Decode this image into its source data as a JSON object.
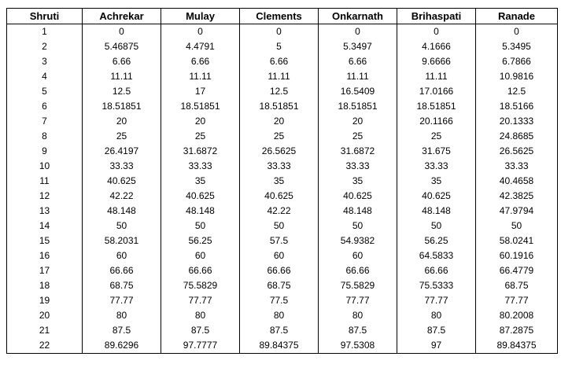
{
  "table": {
    "headers": [
      "Shruti",
      "Achrekar",
      "Mulay",
      "Clements",
      "Onkarnath",
      "Brihaspati",
      "Ranade"
    ],
    "rows": [
      [
        "1",
        "0",
        "0",
        "0",
        "0",
        "0",
        "0"
      ],
      [
        "2",
        "5.46875",
        "4.4791",
        "5",
        "5.3497",
        "4.1666",
        "5.3495"
      ],
      [
        "3",
        "6.66",
        "6.66",
        "6.66",
        "6.66",
        "9.6666",
        "6.7866"
      ],
      [
        "4",
        "11.11",
        "11.11",
        "11.11",
        "11.11",
        "11.11",
        "10.9816"
      ],
      [
        "5",
        "12.5",
        "17",
        "12.5",
        "16.5409",
        "17.0166",
        "12.5"
      ],
      [
        "6",
        "18.51851",
        "18.51851",
        "18.51851",
        "18.51851",
        "18.51851",
        "18.5166"
      ],
      [
        "7",
        "20",
        "20",
        "20",
        "20",
        "20.1166",
        "20.1333"
      ],
      [
        "8",
        "25",
        "25",
        "25",
        "25",
        "25",
        "24.8685"
      ],
      [
        "9",
        "26.4197",
        "31.6872",
        "26.5625",
        "31.6872",
        "31.675",
        "26.5625"
      ],
      [
        "10",
        "33.33",
        "33.33",
        "33.33",
        "33.33",
        "33.33",
        "33.33"
      ],
      [
        "11",
        "40.625",
        "35",
        "35",
        "35",
        "35",
        "40.4658"
      ],
      [
        "12",
        "42.22",
        "40.625",
        "40.625",
        "40.625",
        "40.625",
        "42.3825"
      ],
      [
        "13",
        "48.148",
        "48.148",
        "42.22",
        "48.148",
        "48.148",
        "47.9794"
      ],
      [
        "14",
        "50",
        "50",
        "50",
        "50",
        "50",
        "50"
      ],
      [
        "15",
        "58.2031",
        "56.25",
        "57.5",
        "54.9382",
        "56.25",
        "58.0241"
      ],
      [
        "16",
        "60",
        "60",
        "60",
        "60",
        "64.5833",
        "60.1916"
      ],
      [
        "17",
        "66.66",
        "66.66",
        "66.66",
        "66.66",
        "66.66",
        "66.4779"
      ],
      [
        "18",
        "68.75",
        "75.5829",
        "68.75",
        "75.5829",
        "75.5333",
        "68.75"
      ],
      [
        "19",
        "77.77",
        "77.77",
        "77.5",
        "77.77",
        "77.77",
        "77.77"
      ],
      [
        "20",
        "80",
        "80",
        "80",
        "80",
        "80",
        "80.2008"
      ],
      [
        "21",
        "87.5",
        "87.5",
        "87.5",
        "87.5",
        "87.5",
        "87.2875"
      ],
      [
        "22",
        "89.6296",
        "97.7777",
        "89.84375",
        "97.5308",
        "97",
        "89.84375"
      ]
    ]
  }
}
